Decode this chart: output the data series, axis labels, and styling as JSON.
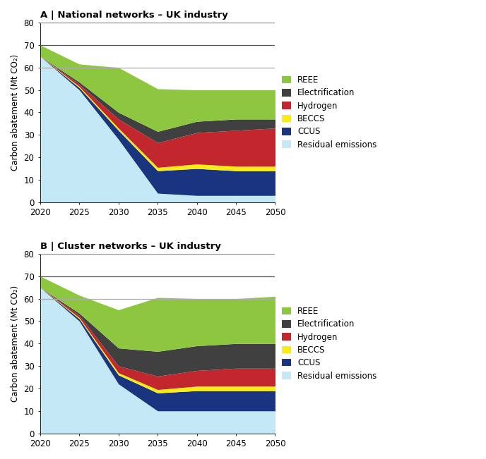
{
  "years": [
    2020,
    2025,
    2030,
    2035,
    2040,
    2045,
    2050
  ],
  "panel_A": {
    "title": "A | National networks – UK industry",
    "residual": [
      65,
      50,
      28,
      4,
      3,
      3,
      3
    ],
    "ccus": [
      0,
      1,
      4,
      10,
      12,
      11,
      11
    ],
    "beccs": [
      0,
      0.5,
      1,
      1.5,
      2,
      2,
      2
    ],
    "hydrogen": [
      0,
      1,
      4,
      11,
      14,
      16,
      17
    ],
    "electrification": [
      0,
      1,
      3,
      5,
      5,
      5,
      4
    ],
    "reee": [
      5,
      8,
      20,
      19,
      14,
      13,
      13
    ]
  },
  "panel_B": {
    "title": "B | Cluster networks – UK industry",
    "residual": [
      65,
      50,
      22,
      10,
      10,
      10,
      10
    ],
    "ccus": [
      0,
      1,
      4,
      8,
      9,
      9,
      9
    ],
    "beccs": [
      0,
      0.5,
      1,
      1.5,
      2,
      2,
      2
    ],
    "hydrogen": [
      0,
      1,
      3,
      6,
      7,
      8,
      8
    ],
    "electrification": [
      0,
      1,
      8,
      11,
      11,
      11,
      11
    ],
    "reee": [
      5,
      8,
      17,
      24,
      21,
      20,
      21
    ]
  },
  "colors": {
    "reee": "#8dc63f",
    "electrification": "#404040",
    "hydrogen": "#c1272d",
    "beccs": "#f7ec13",
    "ccus": "#1a3480",
    "residual": "#c5e8f7"
  },
  "legend_labels": [
    "REEE",
    "Electrification",
    "Hydrogen",
    "BECCS",
    "CCUS",
    "Residual emissions"
  ],
  "ylabel": "Carbon abatement (Mt CO₂)",
  "ylim": [
    0,
    80
  ],
  "yticks": [
    0,
    10,
    20,
    30,
    40,
    50,
    60,
    70,
    80
  ],
  "hline_70_color": "#555555",
  "hline_60_color": "#aaaaaa",
  "xticks": [
    2020,
    2025,
    2030,
    2035,
    2040,
    2045,
    2050
  ],
  "title_fontsize": 9.5,
  "label_fontsize": 8.5,
  "tick_fontsize": 8.5
}
